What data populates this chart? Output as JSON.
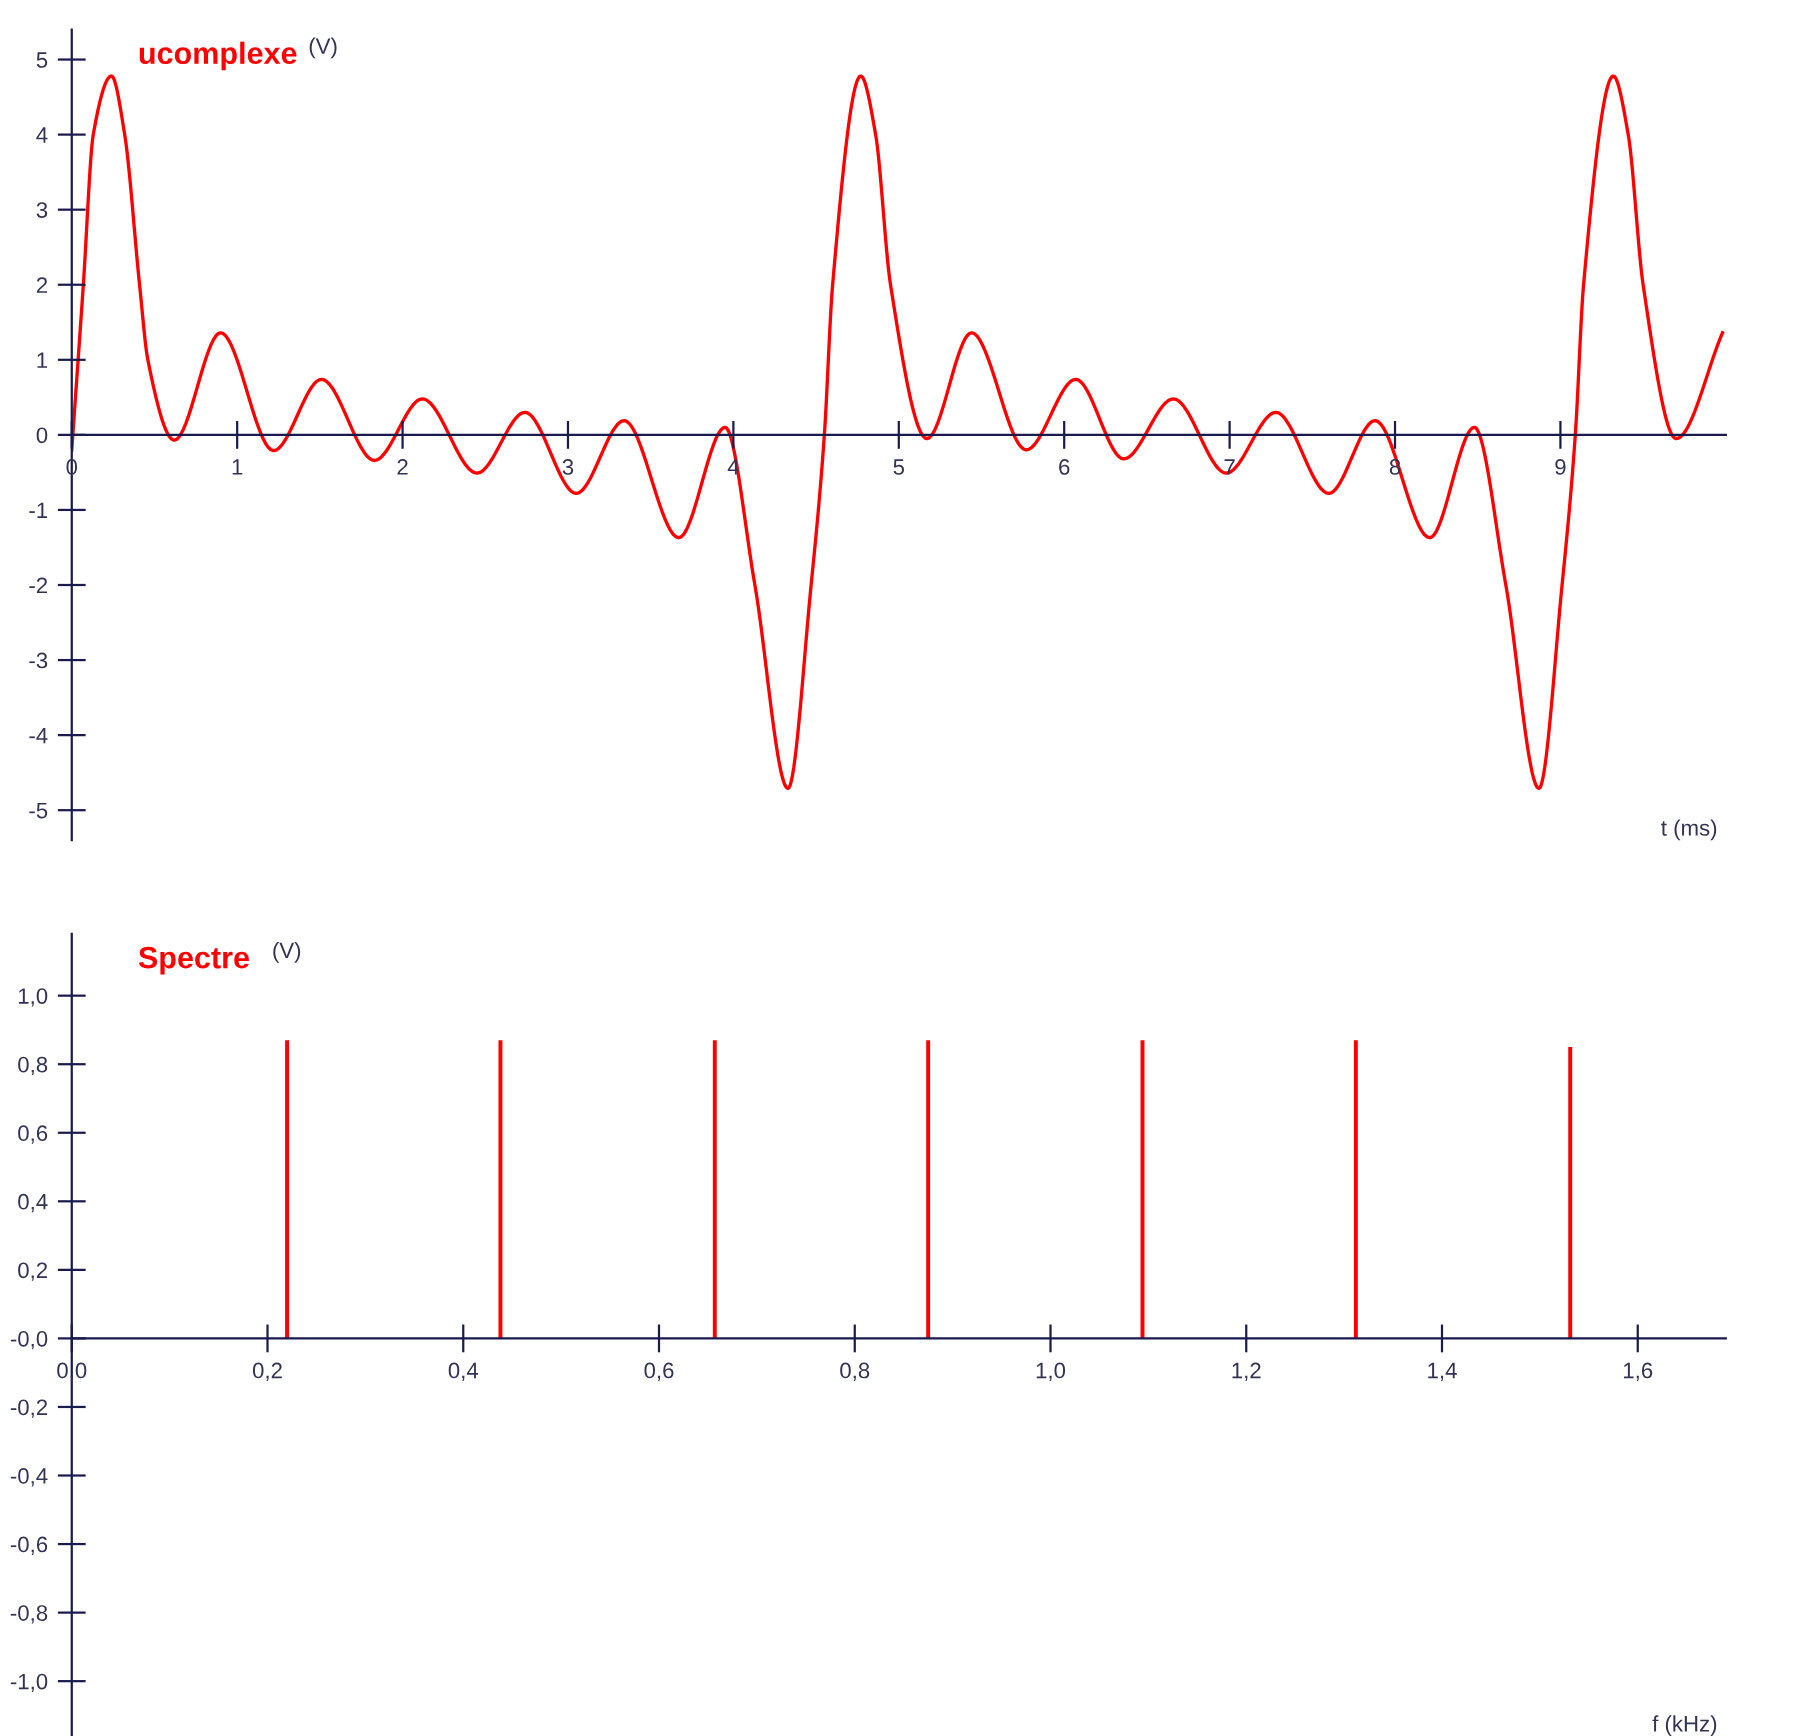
{
  "chart_data": [
    {
      "type": "line",
      "title": "ucomplexe",
      "ylabel": "(V)",
      "xlabel": "t (ms)",
      "series": [
        {
          "color": "#ff0000",
          "x": [
            0,
            0.07,
            0.13,
            0.24,
            0.32,
            0.41,
            0.46,
            0.62,
            0.9,
            1.22,
            1.51,
            1.83,
            2.12,
            2.45,
            2.74,
            3.05,
            3.34,
            3.67,
            3.95,
            4.13,
            4.33,
            4.47,
            4.55,
            4.6,
            4.77,
            4.86,
            4.95,
            5.17,
            5.44,
            5.77,
            6.07,
            6.36,
            6.66,
            6.98,
            7.28,
            7.6,
            7.88,
            8.21,
            8.48,
            8.67,
            8.87,
            9.01,
            9.09,
            9.14,
            9.32,
            9.41,
            9.5,
            9.7,
            9.98
          ],
          "values": [
            -0.2,
            2.0,
            4.0,
            4.78,
            4.0,
            2.0,
            1.0,
            -0.07,
            1.36,
            -0.21,
            0.74,
            -0.34,
            0.48,
            -0.51,
            0.3,
            -0.78,
            0.19,
            -1.37,
            0.1,
            -2.0,
            -4.71,
            -2.0,
            0.0,
            2.0,
            4.78,
            4.0,
            2.0,
            -0.05,
            1.36,
            -0.2,
            0.74,
            -0.32,
            0.48,
            -0.51,
            0.3,
            -0.78,
            0.19,
            -1.37,
            0.1,
            -2.0,
            -4.71,
            -2.0,
            0.0,
            2.0,
            4.78,
            4.0,
            2.0,
            -0.05,
            1.36
          ]
        }
      ],
      "xlim": [
        0,
        10.0
      ],
      "ylim": [
        -5.4,
        5.4
      ],
      "xticks": [
        0,
        1,
        2,
        3,
        4,
        5,
        6,
        7,
        8,
        9
      ],
      "yticks": [
        -5,
        -4,
        -3,
        -2,
        -1,
        0,
        1,
        2,
        3,
        4,
        5
      ],
      "grid": false,
      "legend": false
    },
    {
      "type": "bar",
      "title": "Spectre",
      "ylabel": "(V)",
      "xlabel": "f (kHz)",
      "x": [
        0.22,
        0.438,
        0.657,
        0.875,
        1.094,
        1.312,
        1.531
      ],
      "values": [
        0.87,
        0.87,
        0.87,
        0.87,
        0.87,
        0.87,
        0.85
      ],
      "color": "#ff0000",
      "xlim": [
        0,
        1.69
      ],
      "ylim": [
        -1.16,
        1.18
      ],
      "xticks": [
        {
          "value": 0,
          "label": "0,0"
        },
        {
          "value": 0.2,
          "label": "0,2"
        },
        {
          "value": 0.4,
          "label": "0,4"
        },
        {
          "value": 0.6,
          "label": "0,6"
        },
        {
          "value": 0.8,
          "label": "0,8"
        },
        {
          "value": 1.0,
          "label": "1,0"
        },
        {
          "value": 1.2,
          "label": "1,2"
        },
        {
          "value": 1.4,
          "label": "1,4"
        },
        {
          "value": 1.6,
          "label": "1,6"
        }
      ],
      "yticks": [
        {
          "value": -1.0,
          "label": "-1,0"
        },
        {
          "value": -0.8,
          "label": "-0,8"
        },
        {
          "value": -0.6,
          "label": "-0,6"
        },
        {
          "value": -0.4,
          "label": "-0,4"
        },
        {
          "value": -0.2,
          "label": "-0,2"
        },
        {
          "value": 0,
          "label": "-0,0"
        },
        {
          "value": 0.2,
          "label": "0,2"
        },
        {
          "value": 0.4,
          "label": "0,4"
        },
        {
          "value": 0.6,
          "label": "0,6"
        },
        {
          "value": 0.8,
          "label": "0,8"
        },
        {
          "value": 1.0,
          "label": "1,0"
        }
      ],
      "grid": false,
      "legend": false
    }
  ]
}
